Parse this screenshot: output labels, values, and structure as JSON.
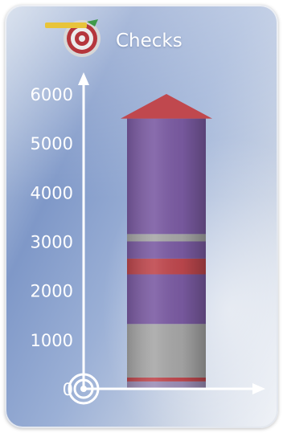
{
  "chart_data": {
    "type": "bar",
    "title": "Checks",
    "xlabel": "",
    "ylabel": "",
    "ylim": [
      0,
      6000
    ],
    "yticks": [
      0,
      1000,
      2000,
      3000,
      4000,
      5000,
      6000
    ],
    "grid": false,
    "legend": "none",
    "segments": [
      {
        "from": 0,
        "to": 150,
        "color": "#9d8fb8"
      },
      {
        "from": 150,
        "to": 230,
        "color": "#c0484e"
      },
      {
        "from": 230,
        "to": 1320,
        "color": "#a8a8a8"
      },
      {
        "from": 1320,
        "to": 2330,
        "color": "#7c5ca4"
      },
      {
        "from": 2330,
        "to": 2650,
        "color": "#c0484e"
      },
      {
        "from": 2650,
        "to": 3000,
        "color": "#7c5ca4"
      },
      {
        "from": 3000,
        "to": 3150,
        "color": "#a8a8a8"
      },
      {
        "from": 3150,
        "to": 5500,
        "color": "#7c5ca4"
      }
    ],
    "arrow": {
      "from": 5500,
      "to": 6000,
      "color": "#c0484e"
    }
  },
  "icon": "dartboard-icon",
  "colors": {
    "axis": "#ffffff",
    "text": "#ffffff"
  }
}
